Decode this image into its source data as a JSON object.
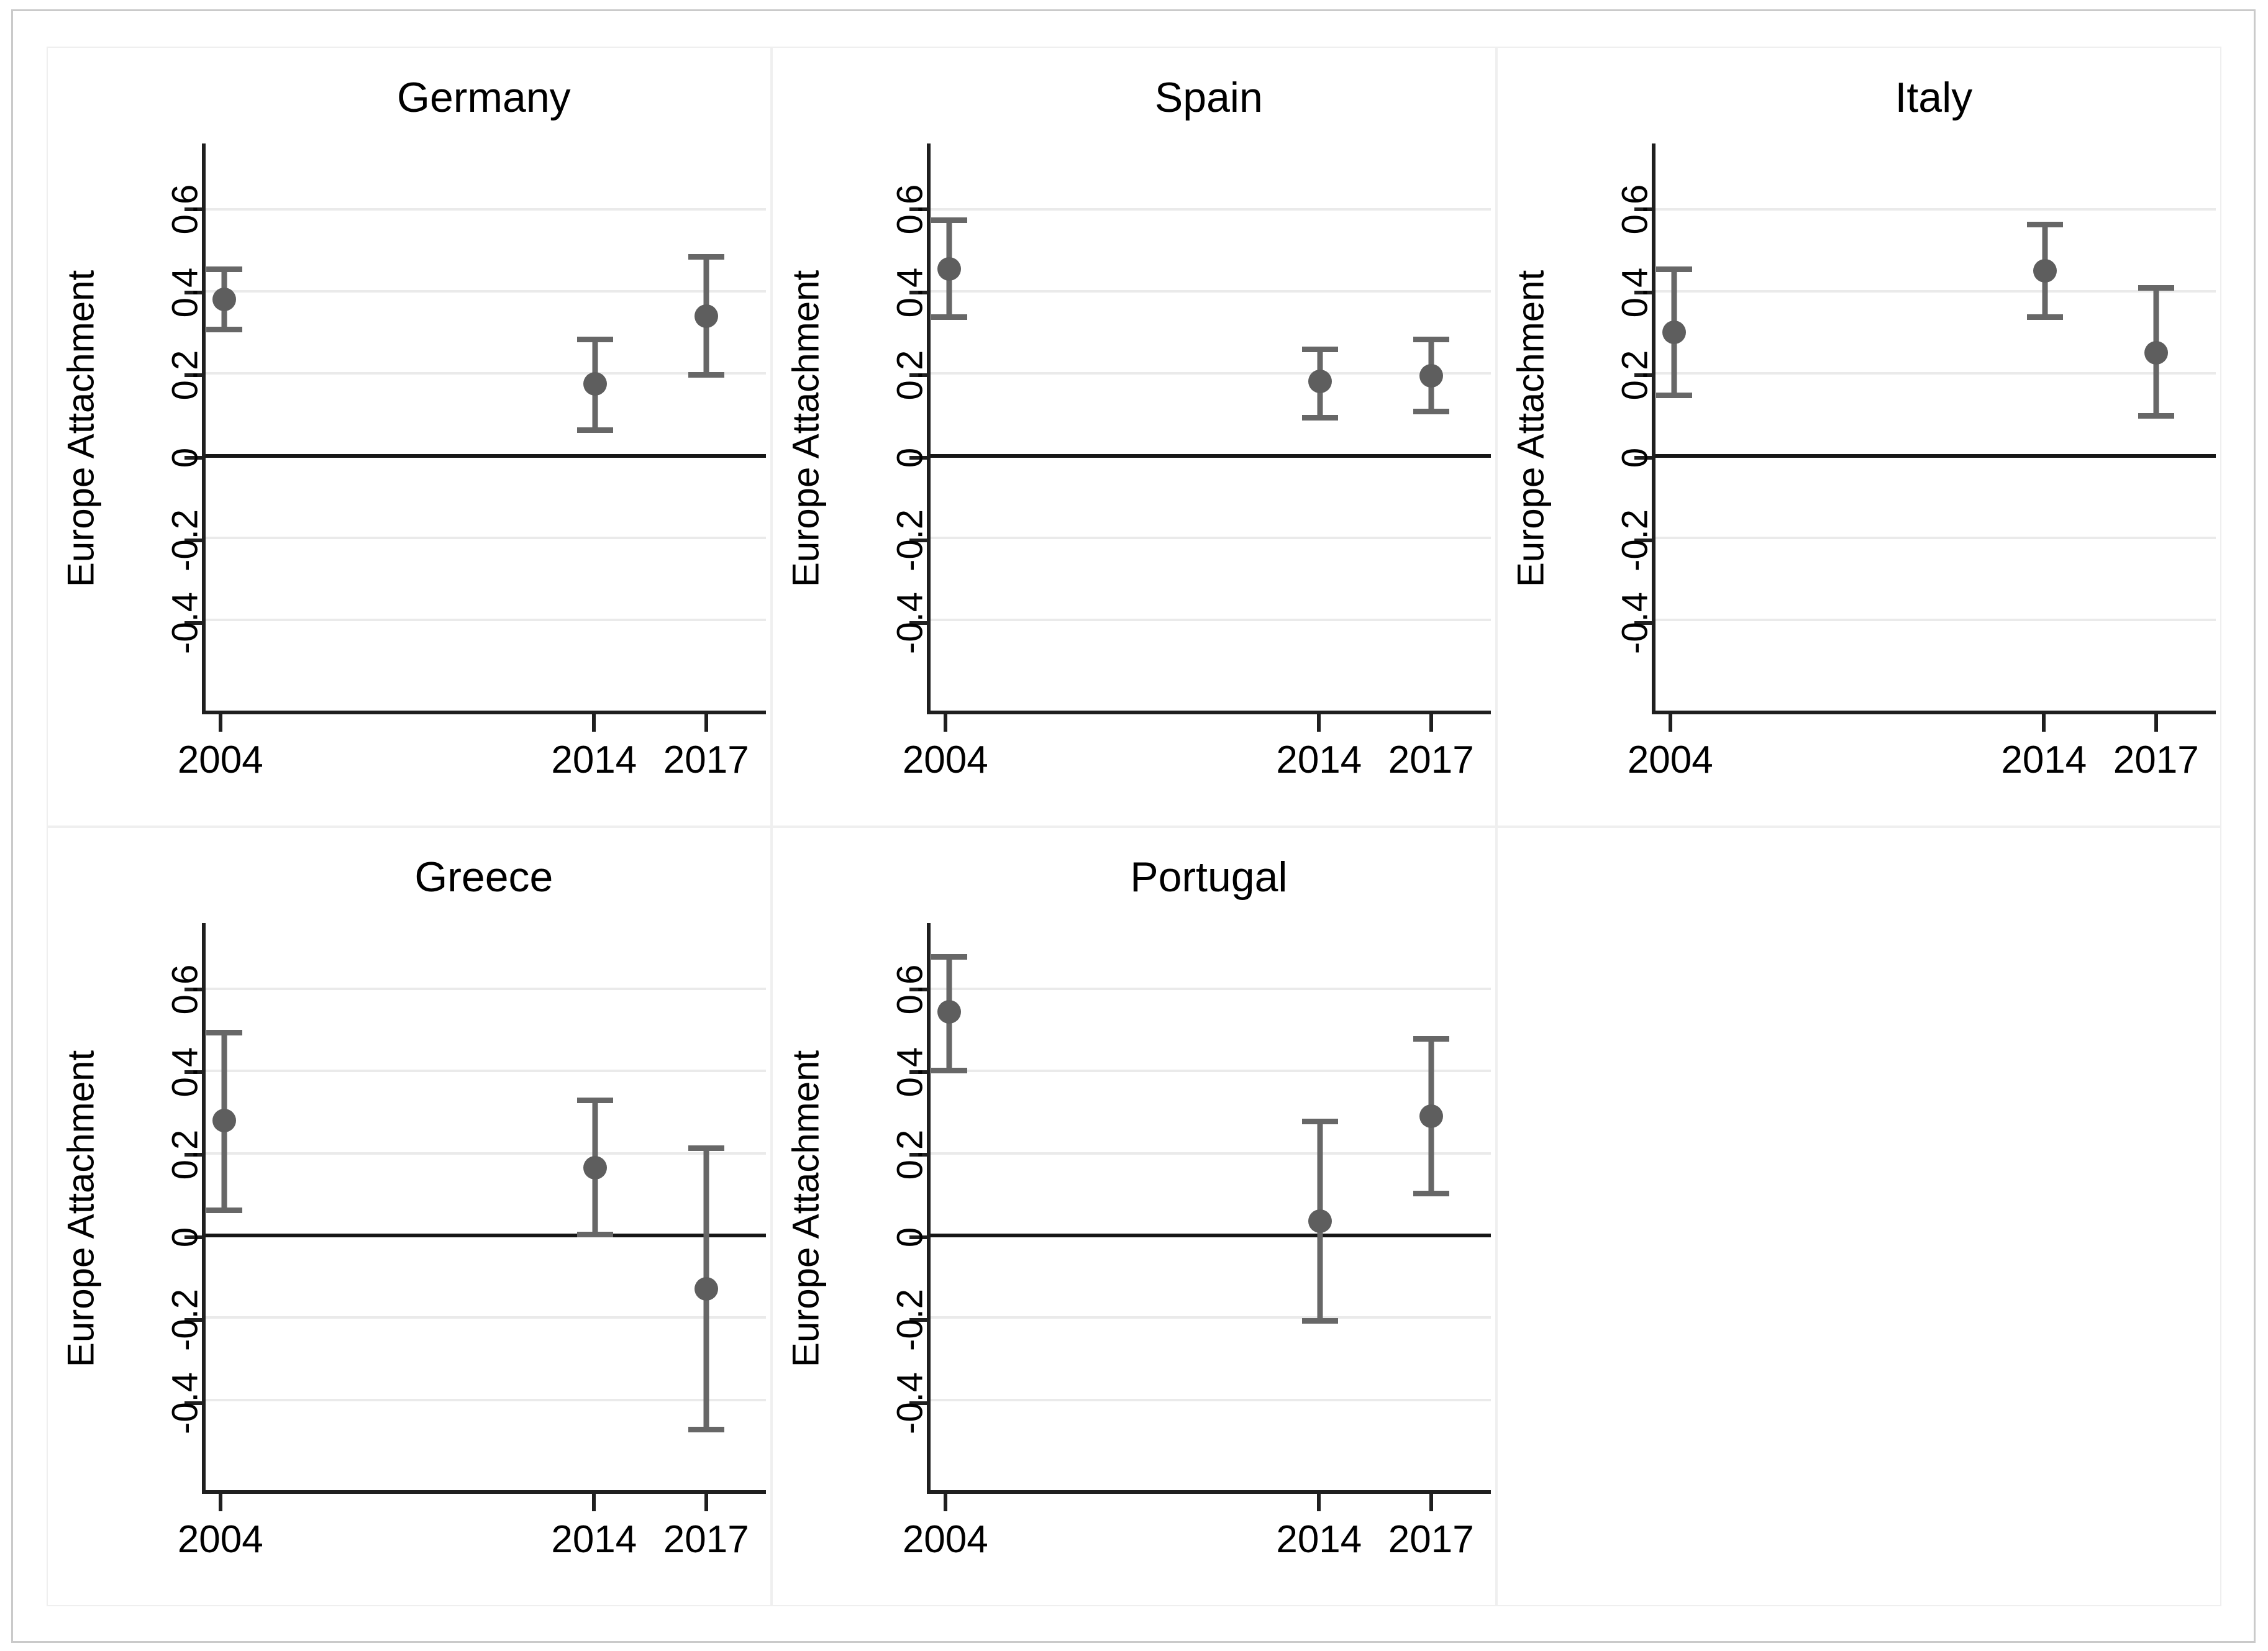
{
  "chart_data": {
    "type": "scatter",
    "subtype": "point-estimates-with-ci-errorbars",
    "layout": "3x2-small-multiples, last cell empty",
    "ylabel": "Europe Attachment",
    "x_tick_labels": [
      "2004",
      "2014",
      "2017"
    ],
    "x_tick_years": [
      2004,
      2014,
      2017
    ],
    "xlim": [
      2003.5,
      2018.6
    ],
    "ylim": [
      -0.62,
      0.76
    ],
    "yticks": [
      0.6,
      0.4,
      0.2,
      0,
      -0.2,
      -0.4
    ],
    "ytick_labels": [
      "0.6",
      "0.4",
      "0.2",
      "0",
      "-0.2",
      "-0.4"
    ],
    "grid": true,
    "zero_line": true,
    "legend": "none",
    "panels": [
      {
        "title": "Germany",
        "years": [
          2004,
          2014,
          2017
        ],
        "estimates": [
          0.38,
          0.175,
          0.34
        ],
        "ci_low": [
          0.3,
          0.055,
          0.19
        ],
        "ci_high": [
          0.46,
          0.29,
          0.49
        ]
      },
      {
        "title": "Spain",
        "years": [
          2004,
          2014,
          2017
        ],
        "estimates": [
          0.455,
          0.18,
          0.195
        ],
        "ci_low": [
          0.33,
          0.085,
          0.1
        ],
        "ci_high": [
          0.58,
          0.265,
          0.29
        ]
      },
      {
        "title": "Italy",
        "years": [
          2004,
          2014,
          2017
        ],
        "estimates": [
          0.3,
          0.45,
          0.25
        ],
        "ci_low": [
          0.14,
          0.33,
          0.09
        ],
        "ci_high": [
          0.46,
          0.57,
          0.415
        ]
      },
      {
        "title": "Greece",
        "years": [
          2004,
          2014,
          2017
        ],
        "estimates": [
          0.28,
          0.165,
          -0.13
        ],
        "ci_low": [
          0.055,
          -0.005,
          -0.48
        ],
        "ci_high": [
          0.5,
          0.335,
          0.22
        ]
      },
      {
        "title": "Portugal",
        "years": [
          2004,
          2014,
          2017
        ],
        "estimates": [
          0.545,
          0.035,
          0.29
        ],
        "ci_low": [
          0.395,
          -0.215,
          0.095
        ],
        "ci_high": [
          0.685,
          0.285,
          0.485
        ]
      }
    ],
    "colors": {
      "marker": "#5e5e5e",
      "error_bar": "#676767",
      "gridline": "#eaeaea",
      "zero_line": "#161616",
      "axis": "#1f1f1f",
      "text": "#000000",
      "panel_border": "#efefef",
      "figure_border": "#cacaca",
      "background": "#ffffff"
    }
  }
}
